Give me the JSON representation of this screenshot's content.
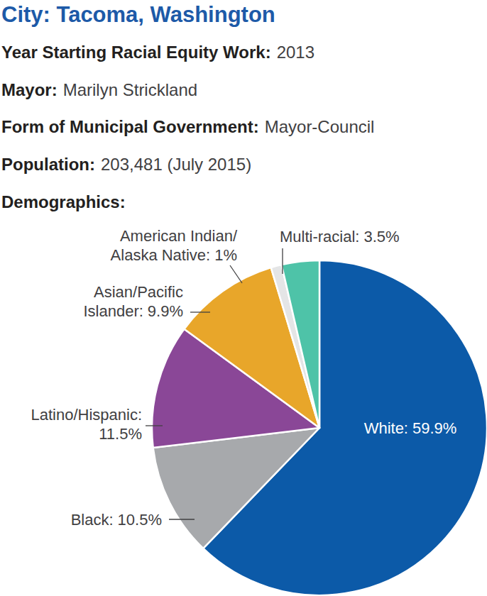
{
  "header": {
    "title": "City: Tacoma, Washington",
    "fields": [
      {
        "label": "Year Starting Racial Equity Work:",
        "value": "2013"
      },
      {
        "label": "Mayor:",
        "value": "Marilyn Strickland"
      },
      {
        "label": "Form of Municipal Government:",
        "value": "Mayor-Council"
      },
      {
        "label": "Population:",
        "value": "203,481 (July 2015)"
      }
    ]
  },
  "chart_data": {
    "type": "pie",
    "title": "Demographics:",
    "categories": [
      "White:",
      "Black:",
      "Latino/Hispanic:",
      "Asian/Pacific Islander:",
      "American Indian/Alaska Native:",
      "Multi-racial:"
    ],
    "values": [
      59.9,
      10.5,
      11.5,
      9.9,
      1,
      3.5
    ],
    "value_labels": [
      "59.9%",
      "10.5%",
      "11.5%",
      "9.9%",
      "1%",
      "3.5%"
    ],
    "colors": [
      "#0c5aa8",
      "#a7a9ac",
      "#8a4797",
      "#e8a62a",
      "#e4e5e6",
      "#4ec3a8"
    ],
    "data_labels": true
  }
}
